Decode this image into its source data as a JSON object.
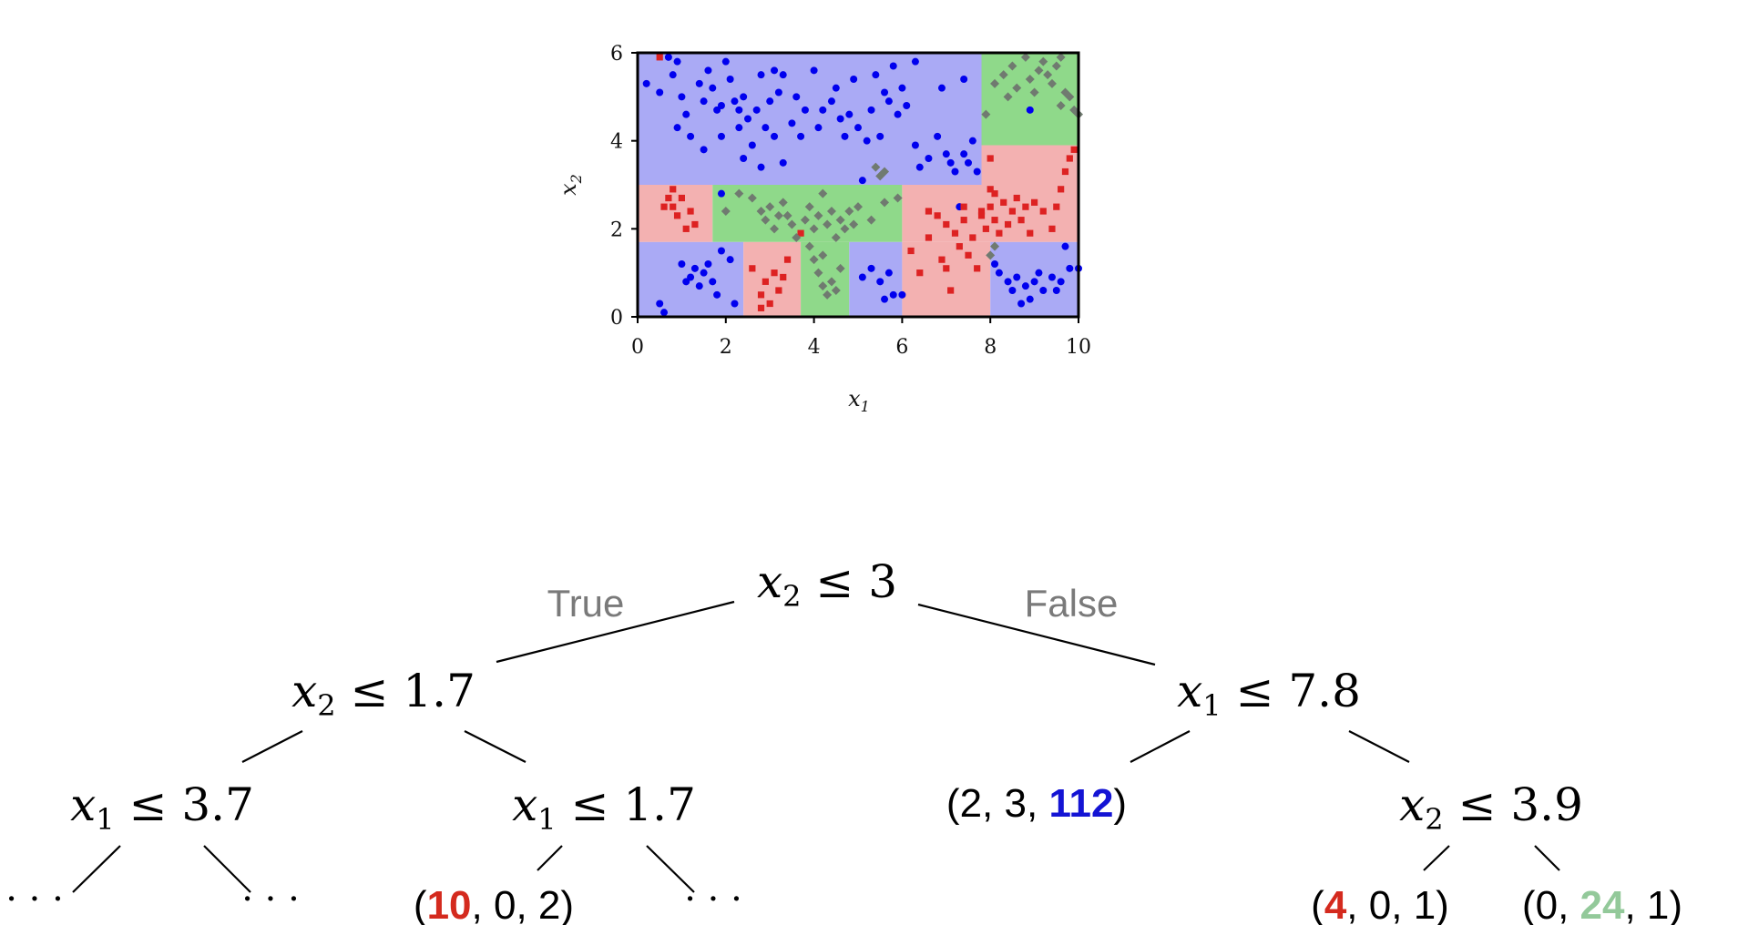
{
  "colors": {
    "region_blue": "#aaaaf5",
    "region_red": "#f3b1b1",
    "region_green": "#8fd98a",
    "point_blue": "#0000ee",
    "point_red": "#dd2222",
    "point_grey": "#707a70",
    "leaf_red": "#d42a1e",
    "leaf_blue": "#1414d4",
    "leaf_green": "#93c99a",
    "edge_label": "#7a7a7a"
  },
  "chart_data": {
    "type": "scatter",
    "xlabel": "x",
    "xlabel_sub": "1",
    "ylabel": "x",
    "ylabel_sub": "2",
    "xlim": [
      0,
      10
    ],
    "ylim": [
      0,
      6
    ],
    "xticks": [
      "0",
      "2",
      "4",
      "6",
      "8",
      "10"
    ],
    "yticks": [
      "0",
      "2",
      "4",
      "6"
    ],
    "regions": [
      {
        "class": "blue",
        "x": [
          0,
          10
        ],
        "y": [
          3,
          6
        ]
      },
      {
        "class": "green",
        "x": [
          7.8,
          10
        ],
        "y": [
          3.9,
          6
        ]
      },
      {
        "class": "red",
        "x": [
          7.8,
          10
        ],
        "y": [
          3,
          3.9
        ]
      },
      {
        "class": "red",
        "x": [
          0,
          1.7
        ],
        "y": [
          1.7,
          3
        ]
      },
      {
        "class": "green",
        "x": [
          1.7,
          6
        ],
        "y": [
          1.7,
          3
        ]
      },
      {
        "class": "red",
        "x": [
          6,
          10
        ],
        "y": [
          1.7,
          3
        ]
      },
      {
        "class": "blue",
        "x": [
          0,
          2.4
        ],
        "y": [
          0,
          1.7
        ]
      },
      {
        "class": "red",
        "x": [
          2.4,
          3.7
        ],
        "y": [
          0,
          1.7
        ]
      },
      {
        "class": "green",
        "x": [
          3.7,
          4.8
        ],
        "y": [
          0,
          1.7
        ]
      },
      {
        "class": "blue",
        "x": [
          4.8,
          6
        ],
        "y": [
          0,
          1.7
        ]
      },
      {
        "class": "red",
        "x": [
          6,
          8
        ],
        "y": [
          0,
          1.7
        ]
      },
      {
        "class": "blue",
        "x": [
          8,
          10
        ],
        "y": [
          0,
          1.7
        ]
      }
    ],
    "series": [
      {
        "marker": "circle",
        "color_key": "point_blue",
        "points": [
          [
            0.2,
            5.3
          ],
          [
            0.5,
            5.1
          ],
          [
            0.7,
            5.9
          ],
          [
            0.8,
            5.5
          ],
          [
            1.0,
            5.0
          ],
          [
            1.1,
            4.6
          ],
          [
            1.2,
            4.1
          ],
          [
            0.9,
            4.3
          ],
          [
            1.4,
            5.3
          ],
          [
            1.5,
            4.9
          ],
          [
            1.6,
            5.6
          ],
          [
            1.7,
            5.2
          ],
          [
            1.8,
            4.7
          ],
          [
            1.9,
            4.8
          ],
          [
            1.9,
            4.1
          ],
          [
            2.0,
            5.8
          ],
          [
            2.1,
            5.4
          ],
          [
            2.2,
            4.9
          ],
          [
            2.3,
            4.7
          ],
          [
            2.4,
            5.0
          ],
          [
            2.3,
            4.3
          ],
          [
            2.4,
            3.6
          ],
          [
            2.5,
            4.5
          ],
          [
            2.6,
            3.9
          ],
          [
            2.7,
            4.7
          ],
          [
            2.8,
            5.5
          ],
          [
            2.9,
            4.3
          ],
          [
            3.0,
            4.9
          ],
          [
            3.1,
            4.1
          ],
          [
            3.2,
            5.1
          ],
          [
            3.3,
            5.5
          ],
          [
            3.5,
            4.4
          ],
          [
            3.6,
            5.0
          ],
          [
            3.7,
            4.1
          ],
          [
            3.8,
            4.7
          ],
          [
            4.0,
            5.6
          ],
          [
            4.1,
            4.3
          ],
          [
            4.2,
            4.7
          ],
          [
            4.4,
            4.9
          ],
          [
            4.5,
            5.2
          ],
          [
            4.6,
            4.5
          ],
          [
            4.7,
            4.1
          ],
          [
            4.8,
            4.6
          ],
          [
            4.9,
            5.4
          ],
          [
            5.0,
            4.3
          ],
          [
            5.2,
            4.0
          ],
          [
            5.3,
            4.7
          ],
          [
            5.4,
            5.5
          ],
          [
            5.5,
            4.1
          ],
          [
            5.6,
            5.1
          ],
          [
            5.7,
            4.9
          ],
          [
            5.9,
            4.6
          ],
          [
            6.0,
            5.2
          ],
          [
            6.1,
            4.8
          ],
          [
            6.3,
            3.9
          ],
          [
            6.4,
            3.4
          ],
          [
            6.6,
            3.6
          ],
          [
            6.8,
            4.1
          ],
          [
            6.9,
            5.2
          ],
          [
            7.0,
            3.7
          ],
          [
            7.1,
            3.5
          ],
          [
            7.2,
            3.3
          ],
          [
            7.4,
            3.7
          ],
          [
            7.5,
            3.5
          ],
          [
            7.6,
            4.0
          ],
          [
            7.7,
            3.3
          ],
          [
            2.8,
            3.4
          ],
          [
            3.3,
            3.5
          ],
          [
            0.9,
            5.8
          ],
          [
            1.5,
            3.8
          ],
          [
            5.8,
            5.7
          ],
          [
            6.3,
            5.8
          ],
          [
            7.4,
            5.4
          ],
          [
            1.2,
            0.9
          ],
          [
            1.3,
            1.1
          ],
          [
            1.5,
            1.0
          ],
          [
            1.6,
            1.2
          ],
          [
            1.4,
            0.7
          ],
          [
            1.7,
            0.8
          ],
          [
            1.8,
            0.5
          ],
          [
            1.9,
            1.5
          ],
          [
            2.1,
            1.3
          ],
          [
            2.2,
            0.3
          ],
          [
            1.0,
            1.2
          ],
          [
            1.1,
            0.8
          ],
          [
            0.5,
            0.3
          ],
          [
            0.6,
            0.1
          ],
          [
            5.1,
            0.9
          ],
          [
            5.3,
            1.1
          ],
          [
            5.5,
            0.8
          ],
          [
            5.6,
            0.4
          ],
          [
            5.8,
            0.5
          ],
          [
            6.0,
            0.5
          ],
          [
            5.7,
            1.0
          ],
          [
            8.2,
            1.0
          ],
          [
            8.4,
            0.8
          ],
          [
            8.5,
            0.6
          ],
          [
            8.6,
            0.9
          ],
          [
            8.8,
            0.7
          ],
          [
            9.0,
            0.8
          ],
          [
            9.1,
            1.0
          ],
          [
            9.2,
            0.6
          ],
          [
            9.4,
            0.9
          ],
          [
            9.6,
            0.8
          ],
          [
            9.7,
            1.6
          ],
          [
            9.8,
            1.1
          ],
          [
            10.0,
            1.1
          ],
          [
            8.1,
            1.2
          ],
          [
            8.7,
            0.3
          ],
          [
            8.9,
            0.4
          ],
          [
            9.5,
            0.6
          ],
          [
            7.3,
            2.5
          ],
          [
            1.9,
            2.8
          ],
          [
            8.9,
            4.7
          ],
          [
            5.1,
            3.1
          ],
          [
            3.1,
            5.6
          ]
        ]
      },
      {
        "marker": "square",
        "color_key": "point_red",
        "points": [
          [
            0.5,
            5.9
          ],
          [
            0.6,
            2.5
          ],
          [
            0.7,
            2.7
          ],
          [
            0.8,
            2.9
          ],
          [
            0.9,
            2.3
          ],
          [
            1.0,
            2.7
          ],
          [
            1.1,
            2.0
          ],
          [
            1.2,
            2.4
          ],
          [
            1.3,
            2.1
          ],
          [
            0.8,
            2.5
          ],
          [
            2.6,
            1.1
          ],
          [
            2.8,
            0.5
          ],
          [
            2.9,
            0.8
          ],
          [
            3.0,
            0.3
          ],
          [
            3.1,
            1.0
          ],
          [
            3.2,
            0.6
          ],
          [
            3.3,
            0.9
          ],
          [
            2.8,
            0.2
          ],
          [
            3.4,
            1.3
          ],
          [
            3.7,
            1.9
          ],
          [
            6.2,
            1.5
          ],
          [
            6.4,
            1.0
          ],
          [
            6.6,
            1.8
          ],
          [
            6.8,
            2.3
          ],
          [
            6.9,
            1.3
          ],
          [
            7.0,
            2.1
          ],
          [
            7.1,
            0.6
          ],
          [
            7.2,
            1.9
          ],
          [
            7.3,
            1.6
          ],
          [
            7.4,
            2.2
          ],
          [
            7.5,
            1.4
          ],
          [
            7.6,
            1.8
          ],
          [
            7.7,
            1.1
          ],
          [
            7.8,
            2.4
          ],
          [
            7.9,
            2.0
          ],
          [
            8.0,
            2.5
          ],
          [
            8.1,
            2.2
          ],
          [
            8.2,
            1.9
          ],
          [
            8.3,
            2.6
          ],
          [
            8.4,
            2.1
          ],
          [
            8.5,
            2.4
          ],
          [
            8.6,
            2.7
          ],
          [
            8.7,
            2.2
          ],
          [
            8.8,
            2.5
          ],
          [
            8.9,
            1.9
          ],
          [
            9.0,
            2.6
          ],
          [
            9.2,
            2.4
          ],
          [
            9.4,
            2.0
          ],
          [
            9.5,
            2.5
          ],
          [
            9.6,
            2.9
          ],
          [
            9.7,
            3.3
          ],
          [
            9.8,
            3.6
          ],
          [
            9.9,
            3.8
          ],
          [
            8.0,
            3.6
          ],
          [
            8.0,
            2.9
          ],
          [
            7.8,
            2.3
          ],
          [
            7.0,
            1.1
          ],
          [
            8.1,
            2.8
          ],
          [
            7.4,
            2.5
          ],
          [
            6.6,
            2.4
          ]
        ]
      },
      {
        "marker": "diamond",
        "color_key": "point_grey",
        "points": [
          [
            2.0,
            2.4
          ],
          [
            2.3,
            2.8
          ],
          [
            2.6,
            2.7
          ],
          [
            2.8,
            2.4
          ],
          [
            2.9,
            2.2
          ],
          [
            3.0,
            2.5
          ],
          [
            3.1,
            2.0
          ],
          [
            3.2,
            2.3
          ],
          [
            3.3,
            2.6
          ],
          [
            3.4,
            2.3
          ],
          [
            3.5,
            2.1
          ],
          [
            3.6,
            1.8
          ],
          [
            3.8,
            2.2
          ],
          [
            3.9,
            2.5
          ],
          [
            4.0,
            2.0
          ],
          [
            4.1,
            2.3
          ],
          [
            4.2,
            2.8
          ],
          [
            4.3,
            2.1
          ],
          [
            4.4,
            2.4
          ],
          [
            4.5,
            1.8
          ],
          [
            4.6,
            2.2
          ],
          [
            4.7,
            2.0
          ],
          [
            4.8,
            2.4
          ],
          [
            4.9,
            2.1
          ],
          [
            5.0,
            2.5
          ],
          [
            5.3,
            2.2
          ],
          [
            5.6,
            2.6
          ],
          [
            5.9,
            2.7
          ],
          [
            3.9,
            1.6
          ],
          [
            4.0,
            1.3
          ],
          [
            4.1,
            1.0
          ],
          [
            4.2,
            0.7
          ],
          [
            4.3,
            0.5
          ],
          [
            4.4,
            0.8
          ],
          [
            4.5,
            0.6
          ],
          [
            4.6,
            1.1
          ],
          [
            4.2,
            1.4
          ],
          [
            5.4,
            3.4
          ],
          [
            5.5,
            3.2
          ],
          [
            5.6,
            3.3
          ],
          [
            8.1,
            5.3
          ],
          [
            8.3,
            5.5
          ],
          [
            8.4,
            5.0
          ],
          [
            8.5,
            5.7
          ],
          [
            8.6,
            5.2
          ],
          [
            8.8,
            5.9
          ],
          [
            8.9,
            5.4
          ],
          [
            9.0,
            5.1
          ],
          [
            9.1,
            5.6
          ],
          [
            9.2,
            5.8
          ],
          [
            9.3,
            5.5
          ],
          [
            9.4,
            5.3
          ],
          [
            9.5,
            5.7
          ],
          [
            9.6,
            4.8
          ],
          [
            9.7,
            5.1
          ],
          [
            9.8,
            5.0
          ],
          [
            9.9,
            4.7
          ],
          [
            10.0,
            4.6
          ],
          [
            7.9,
            4.6
          ],
          [
            8.1,
            1.6
          ],
          [
            8.0,
            1.4
          ],
          [
            9.6,
            5.9
          ]
        ]
      }
    ]
  },
  "tree": {
    "root": {
      "var": "x",
      "sub": "2",
      "rel": "≤",
      "val": "3"
    },
    "true_label": "True",
    "false_label": "False",
    "n_left": {
      "var": "x",
      "sub": "2",
      "rel": "≤",
      "val": "1.7"
    },
    "n_right": {
      "var": "x",
      "sub": "1",
      "rel": "≤",
      "val": "7.8"
    },
    "n_ll": {
      "var": "x",
      "sub": "1",
      "rel": "≤",
      "val": "3.7"
    },
    "n_lr": {
      "var": "x",
      "sub": "1",
      "rel": "≤",
      "val": "1.7"
    },
    "n_rr": {
      "var": "x",
      "sub": "2",
      "rel": "≤",
      "val": "3.9"
    },
    "leaf_rl": {
      "open": "(",
      "a": "2",
      "sep1": ", ",
      "b": "3",
      "sep2": ", ",
      "c": "112",
      "close": ")"
    },
    "leaf_lrl": {
      "open": "(",
      "a": "10",
      "sep1": ", ",
      "b": "0",
      "sep2": ", ",
      "c": "2",
      "close": ")"
    },
    "leaf_rrl": {
      "open": "(",
      "a": "4",
      "sep1": ", ",
      "b": "0",
      "sep2": ", ",
      "c": "1",
      "close": ")"
    },
    "leaf_rrr": {
      "open": "(",
      "a": "0",
      "sep1": ", ",
      "b": "24",
      "sep2": ", ",
      "c": "1",
      "close": ")"
    },
    "ellipsis": "· · ·"
  }
}
